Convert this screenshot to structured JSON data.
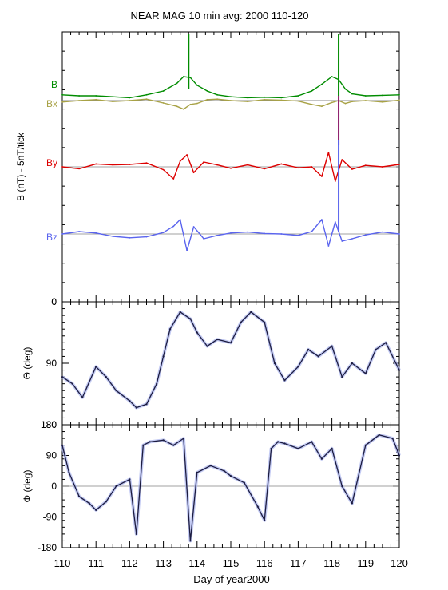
{
  "title": "NEAR MAG 10 min avg: 2000 110-120",
  "xlabel": "Day of year2000",
  "colors": {
    "B": "#008c00",
    "Bx": "#a8a246",
    "By": "#dd0000",
    "Bz": "#5a64ee",
    "angle": "#1c1c40",
    "angle_envelope": "#aab3ee",
    "spike": "#8b1a6a",
    "axis": "#000000",
    "zero_line": "#808080"
  },
  "chart_data": [
    {
      "panel": "B",
      "type": "line",
      "ylabel": "B  (nT) - 5nT/tick",
      "xlim": [
        110,
        120
      ],
      "xticks": [
        "110",
        "111",
        "112",
        "113",
        "114",
        "115",
        "116",
        "117",
        "118",
        "119",
        "120"
      ],
      "yticks": [
        "0"
      ],
      "series": [
        {
          "name": "B",
          "x": [
            110,
            110.5,
            111,
            111.5,
            112,
            112.5,
            113,
            113.4,
            113.6,
            113.8,
            114,
            114.3,
            114.6,
            115,
            115.5,
            116,
            116.5,
            117,
            117.4,
            117.7,
            118,
            118.2,
            118.4,
            118.6,
            119,
            119.5,
            120
          ],
          "y": [
            1.2,
            1.0,
            1.0,
            0.8,
            0.6,
            1.2,
            2.0,
            3.6,
            5.0,
            4.8,
            3.2,
            2.0,
            1.2,
            0.8,
            0.6,
            0.7,
            0.6,
            1.0,
            2.0,
            3.4,
            5.0,
            4.4,
            2.4,
            1.4,
            1.0,
            1.1,
            1.2
          ]
        },
        {
          "name": "Bx",
          "x": [
            110,
            110.5,
            111,
            111.5,
            112,
            112.5,
            113,
            113.4,
            113.6,
            113.8,
            114,
            114.3,
            114.6,
            115,
            115.5,
            116,
            116.5,
            117,
            117.4,
            117.7,
            118,
            118.2,
            118.4,
            118.6,
            119,
            119.5,
            120
          ],
          "y": [
            -0.3,
            0,
            0.2,
            -0.2,
            0,
            0.3,
            -0.5,
            -1.2,
            -1.8,
            -0.8,
            -0.6,
            0.2,
            0.3,
            0,
            -0.2,
            0.2,
            0.1,
            -0.1,
            -0.8,
            -1.2,
            -0.4,
            0,
            -0.6,
            -0.2,
            0,
            -0.3,
            0.1
          ]
        },
        {
          "name": "By",
          "x": [
            110,
            110.5,
            111,
            111.5,
            112,
            112.5,
            113,
            113.3,
            113.5,
            113.7,
            113.9,
            114.2,
            114.6,
            115,
            115.5,
            116,
            116.5,
            117,
            117.4,
            117.7,
            117.9,
            118.1,
            118.3,
            118.6,
            119,
            119.5,
            120
          ],
          "y": [
            0,
            -0.4,
            0.6,
            0.4,
            0.5,
            0.8,
            -0.6,
            -2.5,
            1.2,
            2.5,
            -1.2,
            1.0,
            0.4,
            -0.3,
            0.4,
            -0.4,
            0.6,
            -0.2,
            0,
            -2.0,
            3.0,
            -3.0,
            1.5,
            -0.5,
            0.3,
            0,
            0.5
          ]
        },
        {
          "name": "Bz",
          "x": [
            110,
            110.5,
            111,
            111.5,
            112,
            112.5,
            113,
            113.3,
            113.5,
            113.7,
            113.9,
            114.2,
            114.6,
            115,
            115.5,
            116,
            116.5,
            117,
            117.4,
            117.7,
            117.9,
            118.1,
            118.3,
            118.6,
            119,
            119.5,
            120
          ],
          "y": [
            0,
            0.5,
            0.2,
            -0.5,
            -0.8,
            -0.6,
            0.3,
            1.6,
            3.0,
            -3.5,
            1.5,
            -1.0,
            -0.3,
            0.2,
            0.4,
            0.1,
            0,
            -0.3,
            0.5,
            3.0,
            -2.5,
            2.5,
            -1.5,
            -1.0,
            -0.2,
            0.4,
            0
          ]
        }
      ]
    },
    {
      "panel": "Theta",
      "type": "line",
      "ylabel": "Θ (deg)",
      "ylim": [
        0,
        180
      ],
      "yticks": [
        "0",
        "90",
        "180"
      ],
      "series": [
        {
          "name": "",
          "x": [
            110,
            110.3,
            110.6,
            111,
            111.3,
            111.6,
            112,
            112.2,
            112.5,
            112.8,
            113,
            113.2,
            113.5,
            113.8,
            114,
            114.3,
            114.6,
            115,
            115.3,
            115.6,
            116,
            116.3,
            116.6,
            117,
            117.3,
            117.6,
            118,
            118.3,
            118.6,
            119,
            119.3,
            119.6,
            120
          ],
          "y": [
            110,
            120,
            140,
            95,
            110,
            130,
            145,
            155,
            150,
            120,
            80,
            40,
            15,
            25,
            45,
            65,
            55,
            60,
            30,
            15,
            30,
            90,
            115,
            95,
            70,
            80,
            65,
            110,
            90,
            105,
            70,
            60,
            100
          ]
        }
      ]
    },
    {
      "panel": "Phi",
      "type": "line",
      "ylabel": "Φ (deg)",
      "ylim": [
        -180,
        180
      ],
      "yticks": [
        "180",
        "90",
        "0",
        "-90",
        "-180"
      ],
      "series": [
        {
          "name": "",
          "x": [
            110,
            110.2,
            110.5,
            110.8,
            111,
            111.3,
            111.6,
            112,
            112.2,
            112.4,
            112.6,
            113,
            113.3,
            113.6,
            113.8,
            114,
            114.4,
            114.8,
            115,
            115.4,
            115.8,
            116,
            116.2,
            116.4,
            116.6,
            117,
            117.4,
            117.7,
            118,
            118.3,
            118.6,
            119,
            119.4,
            119.8,
            120
          ],
          "y": [
            120,
            40,
            -30,
            -50,
            -70,
            -45,
            0,
            20,
            -140,
            120,
            130,
            135,
            120,
            140,
            -160,
            40,
            60,
            45,
            30,
            10,
            -60,
            -100,
            110,
            130,
            125,
            110,
            130,
            80,
            110,
            0,
            -50,
            120,
            150,
            140,
            90
          ]
        }
      ]
    }
  ]
}
